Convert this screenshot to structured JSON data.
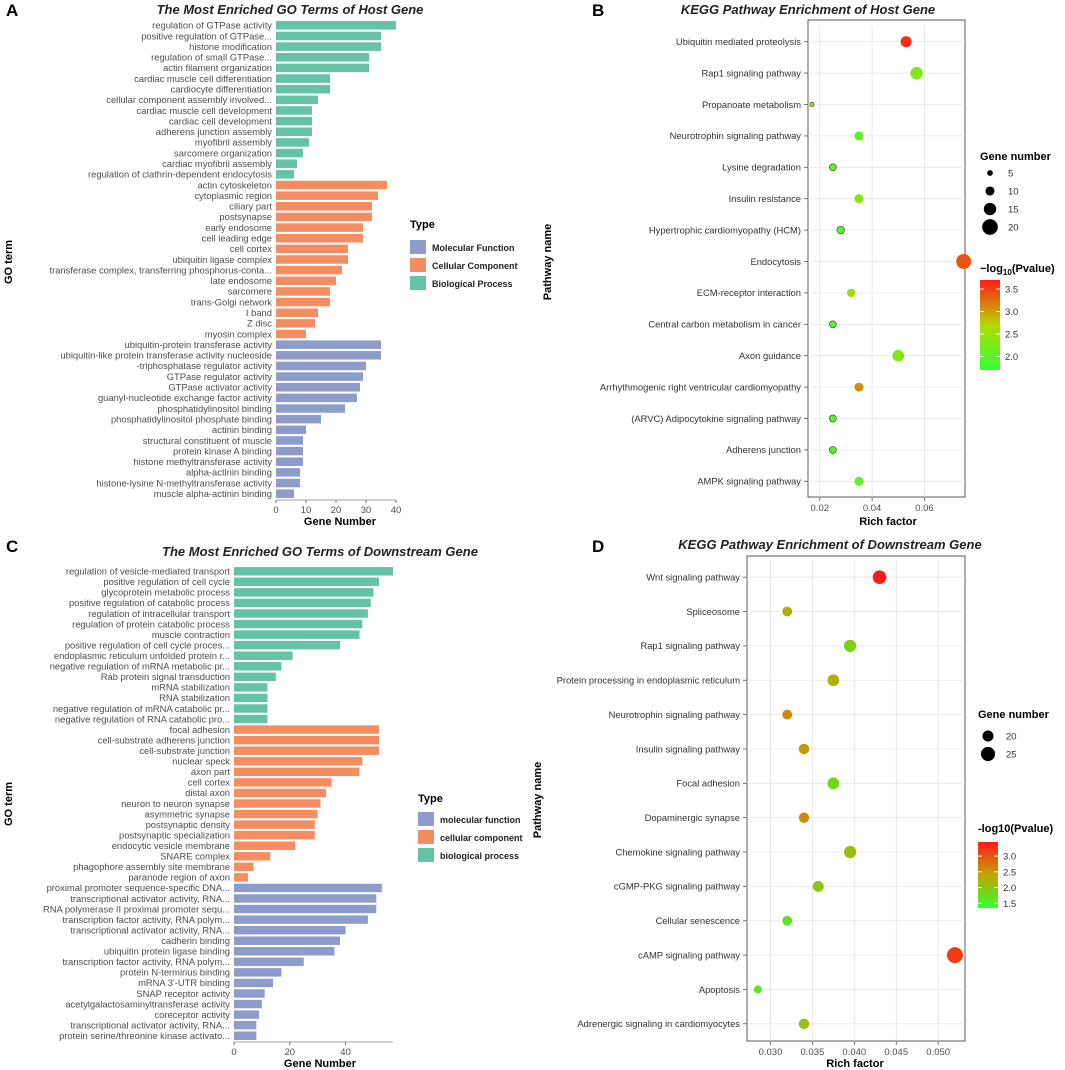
{
  "chart_data": [
    {
      "id": "A",
      "panel_label": "A",
      "type": "bar",
      "orientation": "horizontal",
      "title": "The Most Enriched GO Terms of Host Gene",
      "xlabel": "Gene Number",
      "ylabel": "GO term",
      "xlim": [
        0,
        40
      ],
      "xticks": [
        0,
        10,
        20,
        30,
        40
      ],
      "legend": {
        "title": "Type",
        "entries": [
          {
            "label": "Molecular Function",
            "color": "#8d9ccb"
          },
          {
            "label": "Cellular Component",
            "color": "#f58d62"
          },
          {
            "label": "Biological Process",
            "color": "#66c2a6"
          }
        ]
      },
      "bars": [
        {
          "label": "regulation of GTPase activity",
          "value": 40,
          "type": 2
        },
        {
          "label": "positive regulation of GTPase...",
          "value": 35,
          "type": 2
        },
        {
          "label": "histone modification",
          "value": 35,
          "type": 2
        },
        {
          "label": "regulation of small GTPase...",
          "value": 31,
          "type": 2
        },
        {
          "label": "actin filament organization",
          "value": 31,
          "type": 2
        },
        {
          "label": "cardiac muscle cell differentiation",
          "value": 18,
          "type": 2
        },
        {
          "label": "cardiocyte differentiation",
          "value": 18,
          "type": 2
        },
        {
          "label": "cellular component assembly involved...",
          "value": 14,
          "type": 2
        },
        {
          "label": "cardiac muscle cell development",
          "value": 12,
          "type": 2
        },
        {
          "label": "cardiac cell development",
          "value": 12,
          "type": 2
        },
        {
          "label": "adherens junction assembly",
          "value": 12,
          "type": 2
        },
        {
          "label": "myofibril assembly",
          "value": 11,
          "type": 2
        },
        {
          "label": "sarcomere organization",
          "value": 9,
          "type": 2
        },
        {
          "label": "cardiac myofibril assembly",
          "value": 7,
          "type": 2
        },
        {
          "label": "regulation of clathrin-dependent endocytosis",
          "value": 6,
          "type": 2
        },
        {
          "label": "actin cytoskeleton",
          "value": 37,
          "type": 1
        },
        {
          "label": "cytoplasmic region",
          "value": 34,
          "type": 1
        },
        {
          "label": "ciliary part",
          "value": 32,
          "type": 1
        },
        {
          "label": "postsynapse",
          "value": 32,
          "type": 1
        },
        {
          "label": "early endosome",
          "value": 29,
          "type": 1
        },
        {
          "label": "cell leading edge",
          "value": 29,
          "type": 1
        },
        {
          "label": "cell cortex",
          "value": 24,
          "type": 1
        },
        {
          "label": "ubiquitin ligase complex",
          "value": 24,
          "type": 1
        },
        {
          "label": "transferase complex, transferring phosphorus-conta...",
          "value": 22,
          "type": 1
        },
        {
          "label": "late endosome",
          "value": 20,
          "type": 1
        },
        {
          "label": "sarcomere",
          "value": 18,
          "type": 1
        },
        {
          "label": "trans-Golgi network",
          "value": 18,
          "type": 1
        },
        {
          "label": "I band",
          "value": 14,
          "type": 1
        },
        {
          "label": "Z disc",
          "value": 13,
          "type": 1
        },
        {
          "label": "myosin complex",
          "value": 10,
          "type": 1
        },
        {
          "label": "ubiquitin-protein transferase activity",
          "value": 35,
          "type": 0
        },
        {
          "label": "ubiquitin-like protein transferase activity nucleoside",
          "value": 35,
          "type": 0
        },
        {
          "label": "-triphosphatase regulator activity",
          "value": 30,
          "type": 0
        },
        {
          "label": "GTPase regulator activity",
          "value": 29,
          "type": 0
        },
        {
          "label": "GTPase activator activity",
          "value": 28,
          "type": 0
        },
        {
          "label": "guanyl-nucleotide exchange factor activity",
          "value": 27,
          "type": 0
        },
        {
          "label": "phosphatidylinositol binding",
          "value": 23,
          "type": 0
        },
        {
          "label": "phosphatidylinositol phosphate binding",
          "value": 15,
          "type": 0
        },
        {
          "label": "actinin binding",
          "value": 10,
          "type": 0
        },
        {
          "label": "structural constituent of muscle",
          "value": 9,
          "type": 0
        },
        {
          "label": "protein kinase A binding",
          "value": 9,
          "type": 0
        },
        {
          "label": "histone methyltransferase activity",
          "value": 9,
          "type": 0
        },
        {
          "label": "alpha-actinin binding",
          "value": 8,
          "type": 0
        },
        {
          "label": "histone-lysine N-methyltransferase activity",
          "value": 8,
          "type": 0
        },
        {
          "label": "muscle alpha-actinin binding",
          "value": 6,
          "type": 0
        }
      ]
    },
    {
      "id": "B",
      "panel_label": "B",
      "type": "scatter",
      "title": "KEGG Pathway Enrichment of Host Gene",
      "xlabel": "Rich factor",
      "ylabel": "Pathway name",
      "xlim": [
        0.0155,
        0.0755
      ],
      "xticks": [
        0.02,
        0.04,
        0.06
      ],
      "xtick_labels": [
        "0.02",
        "0.04",
        "0.06"
      ],
      "size_legend": {
        "title": "Gene number",
        "values": [
          5,
          10,
          15,
          20
        ],
        "labels": [
          "5",
          "10",
          "15",
          "20"
        ],
        "range": [
          3,
          22
        ]
      },
      "color_legend": {
        "title_prefix": "−log",
        "title_sub": "10",
        "title_suffix": "(Pvalue)",
        "range": [
          1.7,
          3.7
        ],
        "ticks": [
          2.0,
          2.5,
          3.0,
          3.5
        ],
        "tick_labels": [
          "2.0",
          "2.5",
          "3.0",
          "3.5"
        ]
      },
      "points": [
        {
          "pathway": "Ubiquitin mediated proteolysis",
          "rich_factor": 0.053,
          "gene_number": 13,
          "neglog10p": 3.6
        },
        {
          "pathway": "Rap1 signaling pathway",
          "rich_factor": 0.057,
          "gene_number": 15,
          "neglog10p": 2.3
        },
        {
          "pathway": "Propanoate metabolism",
          "rich_factor": 0.017,
          "gene_number": 3,
          "neglog10p": 2.4
        },
        {
          "pathway": "Neurotrophin signaling pathway",
          "rich_factor": 0.035,
          "gene_number": 10,
          "neglog10p": 2.0
        },
        {
          "pathway": "Lysine degradation",
          "rich_factor": 0.025,
          "gene_number": 7,
          "neglog10p": 2.2
        },
        {
          "pathway": "Insulin resistance",
          "rich_factor": 0.035,
          "gene_number": 10,
          "neglog10p": 2.3
        },
        {
          "pathway": "Hypertrophic cardiomyopathy (HCM)",
          "rich_factor": 0.028,
          "gene_number": 8,
          "neglog10p": 2.0
        },
        {
          "pathway": "Endocytosis",
          "rich_factor": 0.075,
          "gene_number": 19,
          "neglog10p": 3.4
        },
        {
          "pathway": "ECM-receptor interaction",
          "rich_factor": 0.032,
          "gene_number": 9,
          "neglog10p": 2.5
        },
        {
          "pathway": "Central carbon metabolism in cancer",
          "rich_factor": 0.025,
          "gene_number": 7,
          "neglog10p": 2.0
        },
        {
          "pathway": "Axon guidance",
          "rich_factor": 0.05,
          "gene_number": 14,
          "neglog10p": 2.3
        },
        {
          "pathway": "Arrhythmogenic right ventricular cardiomyopathy",
          "rich_factor": 0.035,
          "gene_number": 10,
          "neglog10p": 3.1
        },
        {
          "pathway": "(ARVC) Adipocytokine signaling pathway",
          "rich_factor": 0.025,
          "gene_number": 7,
          "neglog10p": 2.0
        },
        {
          "pathway": "Adherens junction",
          "rich_factor": 0.025,
          "gene_number": 7,
          "neglog10p": 1.9
        },
        {
          "pathway": "AMPK signaling pathway",
          "rich_factor": 0.035,
          "gene_number": 10,
          "neglog10p": 2.0
        }
      ]
    },
    {
      "id": "C",
      "panel_label": "C",
      "type": "bar",
      "orientation": "horizontal",
      "title": "The Most Enriched GO Terms of Downstream Gene",
      "xlabel": "Gene Number",
      "ylabel": "GO term",
      "xlim": [
        0,
        57
      ],
      "xticks": [
        0,
        20,
        40
      ],
      "legend": {
        "title": "Type",
        "entries": [
          {
            "label": "molecular function",
            "color": "#8d9ccb"
          },
          {
            "label": "cellular component",
            "color": "#f58d62"
          },
          {
            "label": "biological process",
            "color": "#66c2a6"
          }
        ]
      },
      "bars": [
        {
          "label": "regulation of vesicle-mediated transport",
          "value": 57,
          "type": 2
        },
        {
          "label": "positive regulation of cell cycle",
          "value": 52,
          "type": 2
        },
        {
          "label": "glycoprotein metabolic process",
          "value": 50,
          "type": 2
        },
        {
          "label": "positive regulation of catabolic process",
          "value": 49,
          "type": 2
        },
        {
          "label": "regulation of intracellular transport",
          "value": 48,
          "type": 2
        },
        {
          "label": "regulation of protein catabolic process",
          "value": 46,
          "type": 2
        },
        {
          "label": "muscle contraction",
          "value": 45,
          "type": 2
        },
        {
          "label": "positive regulation of cell cycle proces...",
          "value": 38,
          "type": 2
        },
        {
          "label": "endoplasmic reticulum unfolded protein r...",
          "value": 21,
          "type": 2
        },
        {
          "label": "negative regulation of mRNA metabolic pr...",
          "value": 17,
          "type": 2
        },
        {
          "label": "Rab protein signal transduction",
          "value": 15,
          "type": 2
        },
        {
          "label": "mRNA stabilization",
          "value": 12,
          "type": 2
        },
        {
          "label": "RNA stabilization",
          "value": 12,
          "type": 2
        },
        {
          "label": "negative regulation of mRNA catabolic pr...",
          "value": 12,
          "type": 2
        },
        {
          "label": "negative regulation of RNA catabolic pro...",
          "value": 12,
          "type": 2
        },
        {
          "label": "focal adhesion",
          "value": 52,
          "type": 1
        },
        {
          "label": "cell-substrate adherens junction",
          "value": 52,
          "type": 1
        },
        {
          "label": "cell-substrate junction",
          "value": 52,
          "type": 1
        },
        {
          "label": "nuclear speck",
          "value": 46,
          "type": 1
        },
        {
          "label": "axon part",
          "value": 45,
          "type": 1
        },
        {
          "label": "cell cortex",
          "value": 35,
          "type": 1
        },
        {
          "label": "distal axon",
          "value": 33,
          "type": 1
        },
        {
          "label": "neuron to neuron synapse",
          "value": 31,
          "type": 1
        },
        {
          "label": "asymmetric synapse",
          "value": 30,
          "type": 1
        },
        {
          "label": "postsynaptic density",
          "value": 29,
          "type": 1
        },
        {
          "label": "postsynaptic specialization",
          "value": 29,
          "type": 1
        },
        {
          "label": "endocytic vesicle membrane",
          "value": 22,
          "type": 1
        },
        {
          "label": "SNARE complex",
          "value": 13,
          "type": 1
        },
        {
          "label": "phagophore assembly site membrane",
          "value": 7,
          "type": 1
        },
        {
          "label": "paranode region of axon",
          "value": 5,
          "type": 1
        },
        {
          "label": "proximal promoter sequence-specific DNA...",
          "value": 53,
          "type": 0
        },
        {
          "label": "transcriptional activator activity, RNA...",
          "value": 51,
          "type": 0
        },
        {
          "label": "RNA polymerase II proximal promoter sequ...",
          "value": 51,
          "type": 0
        },
        {
          "label": "transcription factor activity, RNA polym...",
          "value": 48,
          "type": 0
        },
        {
          "label": "transcriptional activator activity, RNA...",
          "value": 40,
          "type": 0
        },
        {
          "label": "cadherin binding",
          "value": 38,
          "type": 0
        },
        {
          "label": "ubiquitin protein ligase binding",
          "value": 36,
          "type": 0
        },
        {
          "label": "transcription factor activity, RNA polym...",
          "value": 25,
          "type": 0
        },
        {
          "label": "protein N-terminus binding",
          "value": 17,
          "type": 0
        },
        {
          "label": "mRNA 3'-UTR binding",
          "value": 14,
          "type": 0
        },
        {
          "label": "SNAP receptor activity",
          "value": 11,
          "type": 0
        },
        {
          "label": "acetylgalactosaminyltransferase activity",
          "value": 10,
          "type": 0
        },
        {
          "label": "coreceptor activity",
          "value": 9,
          "type": 0
        },
        {
          "label": "transcriptional activator activity, RNA...",
          "value": 8,
          "type": 0
        },
        {
          "label": "protein serine/threonine kinase activato...",
          "value": 8,
          "type": 0
        }
      ]
    },
    {
      "id": "D",
      "panel_label": "D",
      "type": "scatter",
      "title": "KEGG Pathway Enrichment of Downstream Gene",
      "xlabel": "Rich factor",
      "ylabel": "Pathway name",
      "xlim": [
        0.0272,
        0.0532
      ],
      "xticks": [
        0.03,
        0.035,
        0.04,
        0.045,
        0.05
      ],
      "xtick_labels": [
        "0.030",
        "0.035",
        "0.040",
        "0.045",
        "0.050"
      ],
      "size_legend": {
        "title": "Gene number",
        "values": [
          20,
          25
        ],
        "labels": [
          "20",
          "25"
        ],
        "range": [
          15,
          28
        ]
      },
      "color_legend": {
        "title_prefix": "-log10(Pvalue)",
        "title_sub": "",
        "title_suffix": "",
        "range": [
          1.35,
          3.45
        ],
        "ticks": [
          1.5,
          2.0,
          2.5,
          3.0
        ],
        "tick_labels": [
          "1.5",
          "2.0",
          "2.5",
          "3.0"
        ]
      },
      "points": [
        {
          "pathway": "Wnt signaling pathway",
          "rich_factor": 0.043,
          "gene_number": 24,
          "neglog10p": 3.45
        },
        {
          "pathway": "Spliceosome",
          "rich_factor": 0.032,
          "gene_number": 18,
          "neglog10p": 2.3
        },
        {
          "pathway": "Rap1 signaling pathway",
          "rich_factor": 0.0395,
          "gene_number": 22,
          "neglog10p": 1.9
        },
        {
          "pathway": "Protein processing in endoplasmic reticulum",
          "rich_factor": 0.0375,
          "gene_number": 21,
          "neglog10p": 2.3
        },
        {
          "pathway": "Neurotrophin signaling pathway",
          "rich_factor": 0.032,
          "gene_number": 18,
          "neglog10p": 2.6
        },
        {
          "pathway": "Insulin signaling pathway",
          "rich_factor": 0.034,
          "gene_number": 19,
          "neglog10p": 2.5
        },
        {
          "pathway": "Focal adhesion",
          "rich_factor": 0.0375,
          "gene_number": 21,
          "neglog10p": 1.8
        },
        {
          "pathway": "Dopaminergic synapse",
          "rich_factor": 0.034,
          "gene_number": 19,
          "neglog10p": 2.6
        },
        {
          "pathway": "Chemokine signaling pathway",
          "rich_factor": 0.0395,
          "gene_number": 22,
          "neglog10p": 2.1
        },
        {
          "pathway": "cGMP-PKG signaling pathway",
          "rich_factor": 0.0357,
          "gene_number": 20,
          "neglog10p": 2.0
        },
        {
          "pathway": "Cellular senescence",
          "rich_factor": 0.032,
          "gene_number": 18,
          "neglog10p": 1.7
        },
        {
          "pathway": "cAMP signaling pathway",
          "rich_factor": 0.052,
          "gene_number": 28,
          "neglog10p": 3.2
        },
        {
          "pathway": "Apoptosis",
          "rich_factor": 0.0285,
          "gene_number": 15,
          "neglog10p": 1.6
        },
        {
          "pathway": "Adrenergic signaling in cardiomyocytes",
          "rich_factor": 0.034,
          "gene_number": 19,
          "neglog10p": 2.1
        }
      ]
    }
  ]
}
